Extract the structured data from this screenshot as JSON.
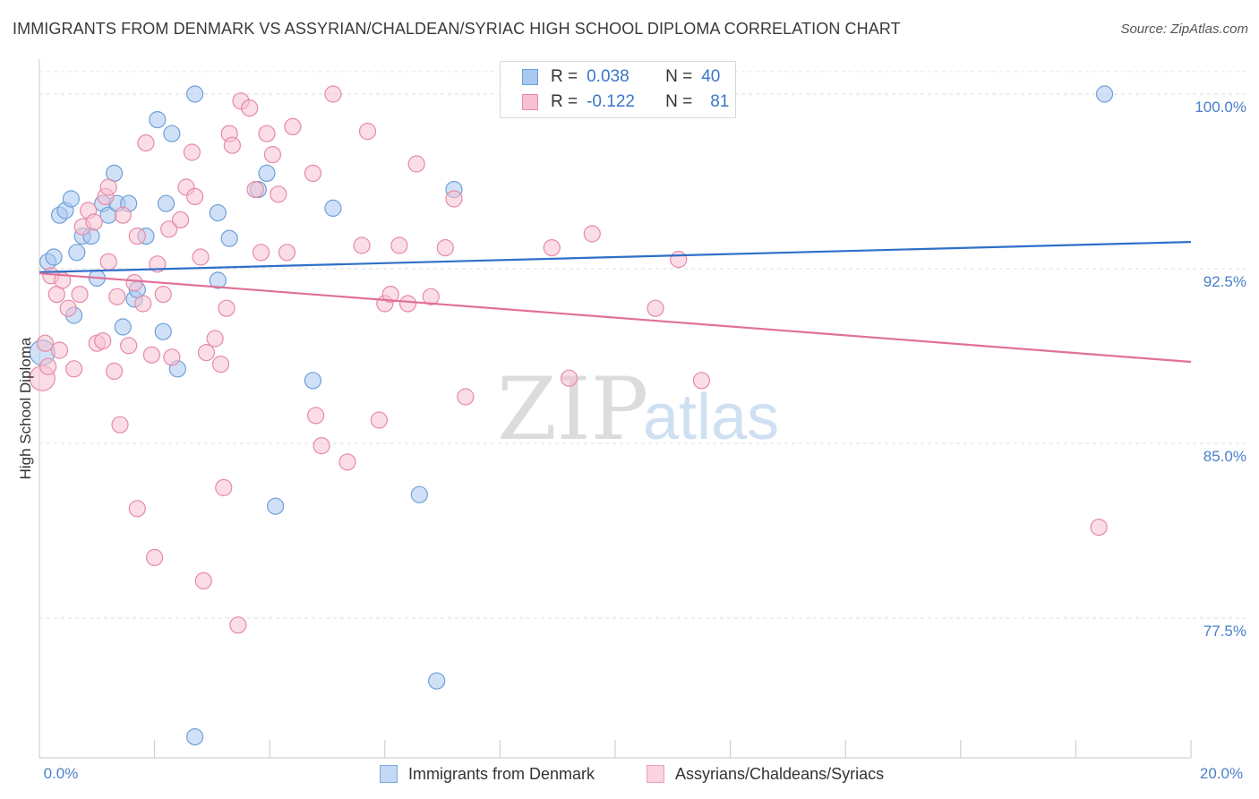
{
  "header": {
    "title": "IMMIGRANTS FROM DENMARK VS ASSYRIAN/CHALDEAN/SYRIAC HIGH SCHOOL DIPLOMA CORRELATION CHART",
    "source": "Source: ZipAtlas.com"
  },
  "legend": {
    "r_label": "R =",
    "n_label": "N =",
    "series": [
      {
        "r": "0.038",
        "n": "40",
        "color": "#a9c8f0",
        "border": "#6f9fd8"
      },
      {
        "r": "-0.122",
        "n": "81",
        "color": "#f7c1d1",
        "border": "#e68aa7"
      }
    ]
  },
  "watermark": {
    "zip": "ZIP",
    "atlas": "atlas"
  },
  "chart_data": {
    "type": "scatter",
    "title": "IMMIGRANTS FROM DENMARK VS ASSYRIAN/CHALDEAN/SYRIAC HIGH SCHOOL DIPLOMA CORRELATION CHART",
    "ylabel": "High School Diploma",
    "xlabel": "",
    "xlim": [
      0,
      20
    ],
    "ylim": [
      71.5,
      101.5
    ],
    "x_tick_labels": [
      "0.0%",
      "20.0%"
    ],
    "y_ticks": [
      77.5,
      85.0,
      92.5,
      100.0
    ],
    "y_tick_labels": [
      "77.5%",
      "85.0%",
      "92.5%",
      "100.0%"
    ],
    "grid": "horizontal dashed",
    "legend_position": "top-center",
    "series": [
      {
        "name": "Immigrants from Denmark",
        "color": "#6f9fd8",
        "fill": "#a9c8f0",
        "trend": {
          "x": [
            0,
            20
          ],
          "y": [
            92.35,
            93.65
          ],
          "color": "#2f6fc9"
        },
        "points": [
          [
            0.05,
            88.9
          ],
          [
            0.15,
            92.8
          ],
          [
            0.25,
            93.0
          ],
          [
            0.35,
            94.8
          ],
          [
            0.45,
            95.0
          ],
          [
            0.55,
            95.5
          ],
          [
            0.65,
            93.2
          ],
          [
            0.75,
            93.9
          ],
          [
            0.9,
            93.9
          ],
          [
            1.0,
            92.1
          ],
          [
            1.1,
            95.3
          ],
          [
            1.2,
            94.8
          ],
          [
            1.3,
            96.6
          ],
          [
            1.35,
            95.3
          ],
          [
            1.45,
            90.0
          ],
          [
            1.55,
            95.3
          ],
          [
            1.65,
            91.2
          ],
          [
            1.7,
            91.6
          ],
          [
            1.85,
            93.9
          ],
          [
            2.05,
            98.9
          ],
          [
            2.15,
            89.8
          ],
          [
            2.2,
            95.3
          ],
          [
            2.3,
            98.3
          ],
          [
            2.4,
            88.2
          ],
          [
            2.7,
            100.0
          ],
          [
            3.1,
            92.0
          ],
          [
            3.1,
            94.9
          ],
          [
            3.3,
            93.8
          ],
          [
            3.8,
            95.9
          ],
          [
            3.95,
            96.6
          ],
          [
            4.1,
            82.3
          ],
          [
            4.75,
            87.7
          ],
          [
            5.1,
            95.1
          ],
          [
            6.6,
            82.8
          ],
          [
            6.9,
            74.8
          ],
          [
            7.2,
            95.9
          ],
          [
            8.8,
            100.0
          ],
          [
            2.7,
            72.4
          ],
          [
            18.5,
            100.0
          ],
          [
            0.6,
            90.5
          ]
        ]
      },
      {
        "name": "Assyrians/Chaldeans/Syriacs",
        "color": "#e68aa7",
        "fill": "#f7c1d1",
        "trend": {
          "x": [
            0,
            20
          ],
          "y": [
            92.3,
            88.5
          ],
          "color": "#e0709a"
        },
        "points": [
          [
            0.05,
            87.8
          ],
          [
            0.1,
            89.3
          ],
          [
            0.15,
            88.3
          ],
          [
            0.2,
            92.2
          ],
          [
            0.3,
            91.4
          ],
          [
            0.4,
            92.0
          ],
          [
            0.5,
            90.8
          ],
          [
            0.6,
            88.2
          ],
          [
            0.7,
            91.4
          ],
          [
            0.75,
            94.3
          ],
          [
            0.85,
            95.0
          ],
          [
            0.95,
            94.5
          ],
          [
            1.0,
            89.3
          ],
          [
            1.1,
            89.4
          ],
          [
            1.15,
            95.6
          ],
          [
            1.2,
            92.8
          ],
          [
            1.3,
            88.1
          ],
          [
            1.35,
            91.3
          ],
          [
            1.45,
            94.8
          ],
          [
            1.55,
            89.2
          ],
          [
            1.65,
            91.9
          ],
          [
            1.7,
            93.9
          ],
          [
            1.8,
            91.0
          ],
          [
            1.85,
            97.9
          ],
          [
            1.95,
            88.8
          ],
          [
            2.05,
            92.7
          ],
          [
            2.15,
            91.4
          ],
          [
            2.25,
            94.2
          ],
          [
            2.3,
            88.7
          ],
          [
            2.45,
            94.6
          ],
          [
            2.55,
            96.0
          ],
          [
            2.65,
            97.5
          ],
          [
            2.7,
            95.6
          ],
          [
            2.8,
            93.0
          ],
          [
            2.9,
            88.9
          ],
          [
            3.05,
            89.5
          ],
          [
            3.15,
            88.4
          ],
          [
            3.25,
            90.8
          ],
          [
            3.3,
            98.3
          ],
          [
            3.35,
            97.8
          ],
          [
            3.5,
            99.7
          ],
          [
            3.65,
            99.4
          ],
          [
            3.75,
            95.9
          ],
          [
            3.85,
            93.2
          ],
          [
            3.95,
            98.3
          ],
          [
            4.05,
            97.4
          ],
          [
            4.15,
            95.7
          ],
          [
            4.3,
            93.2
          ],
          [
            4.4,
            98.6
          ],
          [
            4.75,
            96.6
          ],
          [
            4.8,
            86.2
          ],
          [
            4.9,
            84.9
          ],
          [
            5.1,
            100.0
          ],
          [
            5.35,
            84.2
          ],
          [
            5.6,
            93.5
          ],
          [
            5.7,
            98.4
          ],
          [
            5.9,
            86.0
          ],
          [
            6.0,
            91.0
          ],
          [
            6.1,
            91.4
          ],
          [
            6.25,
            93.5
          ],
          [
            6.4,
            91.0
          ],
          [
            6.55,
            97.0
          ],
          [
            6.8,
            91.3
          ],
          [
            7.05,
            93.4
          ],
          [
            7.2,
            95.5
          ],
          [
            7.4,
            87.0
          ],
          [
            8.9,
            93.4
          ],
          [
            9.2,
            87.8
          ],
          [
            9.6,
            94.0
          ],
          [
            10.7,
            90.8
          ],
          [
            11.1,
            92.9
          ],
          [
            11.5,
            87.7
          ],
          [
            1.4,
            85.8
          ],
          [
            1.7,
            82.2
          ],
          [
            2.0,
            80.1
          ],
          [
            3.2,
            83.1
          ],
          [
            2.85,
            79.1
          ],
          [
            3.45,
            77.2
          ],
          [
            18.4,
            81.4
          ],
          [
            0.35,
            89.0
          ],
          [
            1.2,
            96.0
          ]
        ]
      }
    ]
  },
  "bottom_legend": {
    "items": [
      {
        "label": "Immigrants from Denmark",
        "fill": "#c3d9f5",
        "border": "#7fa8de"
      },
      {
        "label": "Assyrians/Chaldeans/Syriacs",
        "fill": "#fad3de",
        "border": "#e9a0b7"
      }
    ]
  }
}
